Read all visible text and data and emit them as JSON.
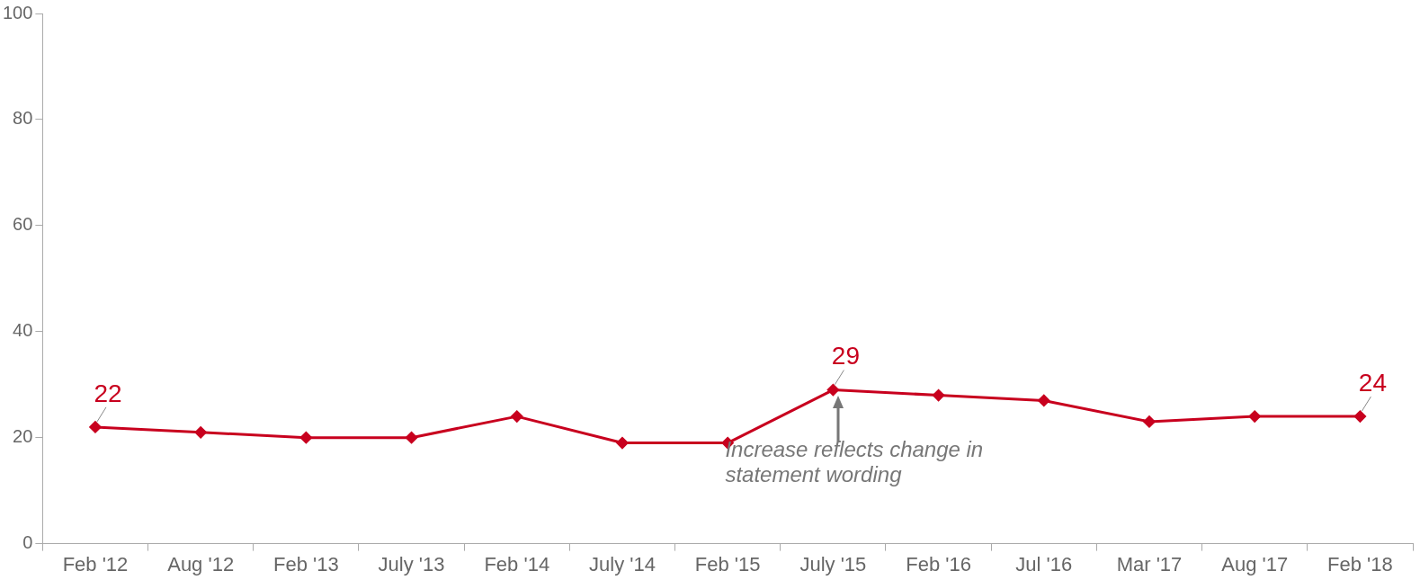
{
  "chart_data": {
    "type": "line",
    "categories": [
      "Feb '12",
      "Aug '12",
      "Feb '13",
      "July '13",
      "Feb '14",
      "July '14",
      "Feb '15",
      "July '15",
      "Feb '16",
      "Jul '16",
      "Mar '17",
      "Aug '17",
      "Feb '18"
    ],
    "series": [
      {
        "color": "#c8001e",
        "values": [
          22,
          21,
          20,
          20,
          24,
          19,
          19,
          29,
          28,
          27,
          23,
          24,
          24
        ],
        "value_labels": [
          "22",
          null,
          null,
          null,
          null,
          null,
          null,
          "29",
          null,
          null,
          null,
          null,
          "24"
        ]
      }
    ],
    "ylim": [
      0,
      100
    ],
    "yticks": [
      0,
      20,
      40,
      60,
      80,
      100
    ],
    "grid": false,
    "legend": false,
    "marker": "diamond",
    "line_style": "solid",
    "annotations": [
      {
        "text": "Increase reflects change in statement wording",
        "x": "July '15",
        "y": 29
      }
    ]
  }
}
